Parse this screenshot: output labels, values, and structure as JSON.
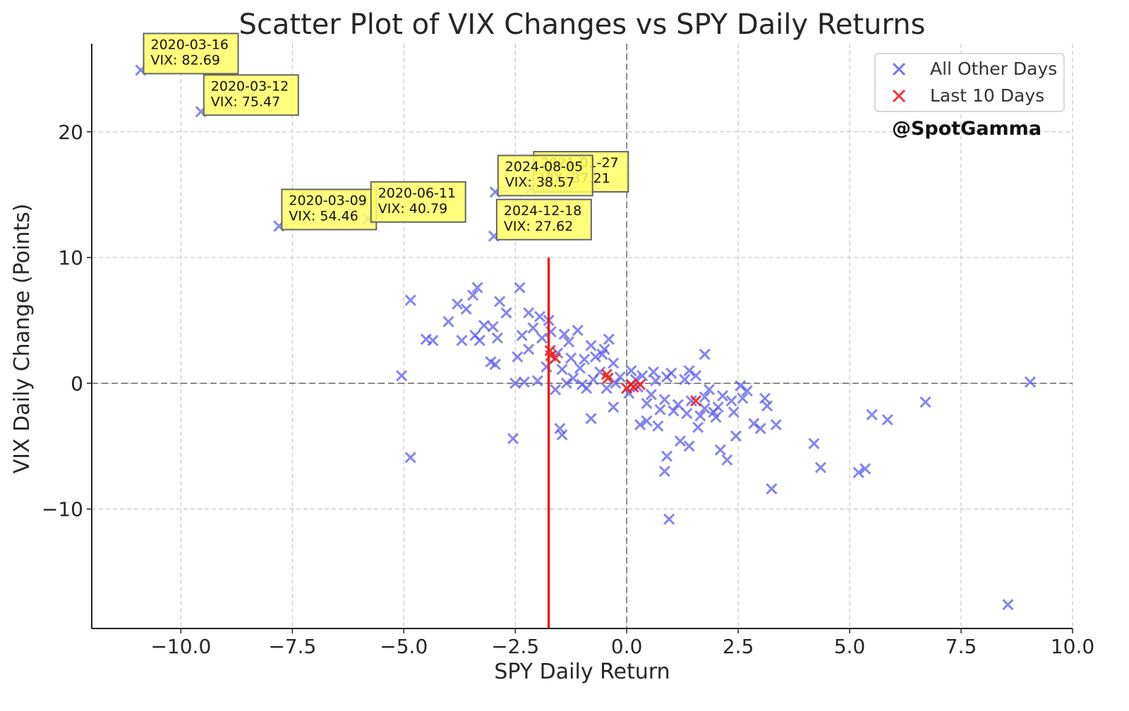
{
  "chart_data": {
    "type": "scatter",
    "title": "Scatter Plot of VIX Changes vs SPY Daily Returns",
    "xlabel": "SPY Daily Return",
    "ylabel": "VIX Daily Change (Points)",
    "xlim": [
      -12,
      10
    ],
    "ylim": [
      -19.5,
      27
    ],
    "xticks": [
      -10.0,
      -7.5,
      -5.0,
      -2.5,
      0.0,
      2.5,
      5.0,
      7.5,
      10.0
    ],
    "xtick_labels": [
      "−10.0",
      "−7.5",
      "−5.0",
      "−2.5",
      "0.0",
      "2.5",
      "5.0",
      "7.5",
      "10.0"
    ],
    "yticks": [
      -10,
      0,
      10,
      20
    ],
    "ytick_labels": [
      "−10",
      "0",
      "10",
      "20"
    ],
    "grid": true,
    "legend_position": "top-right",
    "watermark": "@SpotGamma",
    "vertical_line": {
      "x": -1.75,
      "y_from": -19.5,
      "y_to": 10,
      "color": "#ee1c1c"
    },
    "colors": {
      "other": "#5555ee",
      "last10": "#ee2222",
      "annotation_bg": "#ffff66",
      "annotation_border": "#666666"
    },
    "series": [
      {
        "name": "All Other Days",
        "marker": "x",
        "points": [
          [
            -10.9,
            24.9
          ],
          [
            -9.55,
            21.6
          ],
          [
            -7.8,
            12.5
          ],
          [
            -5.8,
            13.1
          ],
          [
            -2.95,
            15.2
          ],
          [
            -2.98,
            11.7
          ],
          [
            -2.15,
            15.5
          ],
          [
            -5.05,
            0.6
          ],
          [
            -4.85,
            6.6
          ],
          [
            -4.85,
            -5.9
          ],
          [
            -4.5,
            3.5
          ],
          [
            -4.35,
            3.4
          ],
          [
            -4.0,
            4.9
          ],
          [
            -3.8,
            6.3
          ],
          [
            -3.7,
            3.4
          ],
          [
            -3.6,
            5.9
          ],
          [
            -3.45,
            7.0
          ],
          [
            -3.35,
            7.6
          ],
          [
            -3.4,
            3.8
          ],
          [
            -3.3,
            3.4
          ],
          [
            -3.2,
            4.6
          ],
          [
            -3.05,
            1.7
          ],
          [
            -3.0,
            4.5
          ],
          [
            -2.95,
            1.5
          ],
          [
            -2.85,
            6.5
          ],
          [
            -2.7,
            5.6
          ],
          [
            -2.9,
            3.6
          ],
          [
            -2.5,
            0.0
          ],
          [
            -2.4,
            7.6
          ],
          [
            -2.3,
            0.1
          ],
          [
            -2.55,
            -4.4
          ],
          [
            -2.2,
            5.6
          ],
          [
            -2.0,
            0.2
          ],
          [
            -1.5,
            -3.6
          ],
          [
            -1.45,
            -4.1
          ],
          [
            -0.8,
            -2.8
          ],
          [
            0.9,
            -5.8
          ],
          [
            0.85,
            -7.0
          ],
          [
            0.95,
            -10.8
          ],
          [
            1.4,
            -5.0
          ],
          [
            1.6,
            -3.5
          ],
          [
            2.1,
            -5.3
          ],
          [
            2.25,
            -6.1
          ],
          [
            2.45,
            -4.2
          ],
          [
            3.0,
            -3.6
          ],
          [
            3.25,
            -8.4
          ],
          [
            3.35,
            -3.3
          ],
          [
            4.2,
            -4.8
          ],
          [
            4.35,
            -6.7
          ],
          [
            5.2,
            -7.1
          ],
          [
            5.35,
            -6.8
          ],
          [
            5.5,
            -2.5
          ],
          [
            5.85,
            -2.9
          ],
          [
            6.7,
            -1.5
          ],
          [
            8.55,
            -17.6
          ],
          [
            9.05,
            0.1
          ],
          [
            3.1,
            -1.2
          ],
          [
            3.15,
            -1.8
          ],
          [
            2.6,
            -1.2
          ],
          [
            2.0,
            -2.7
          ],
          [
            1.2,
            -4.6
          ],
          [
            -0.9,
            -0.4
          ],
          [
            -1.6,
            -0.5
          ],
          [
            -0.3,
            -1.9
          ],
          [
            0.3,
            -3.3
          ],
          [
            0.45,
            -3.0
          ],
          [
            0.7,
            -3.4
          ],
          [
            1.75,
            -2.0
          ],
          [
            2.4,
            -2.3
          ],
          [
            2.85,
            -3.2
          ],
          [
            -1.7,
            4.1
          ],
          [
            -1.9,
            3.6
          ],
          [
            -1.4,
            3.9
          ],
          [
            -1.1,
            4.2
          ],
          [
            -1.3,
            3.3
          ],
          [
            -0.8,
            3.0
          ],
          [
            -0.5,
            2.7
          ],
          [
            -1.55,
            2.4
          ],
          [
            -1.25,
            2.0
          ],
          [
            -0.95,
            1.9
          ],
          [
            -0.7,
            2.1
          ],
          [
            -0.3,
            1.6
          ],
          [
            0.1,
            1.0
          ],
          [
            0.35,
            0.6
          ],
          [
            0.65,
            0.2
          ],
          [
            0.9,
            0.5
          ],
          [
            1.3,
            0.3
          ],
          [
            1.55,
            0.6
          ],
          [
            1.85,
            -0.5
          ],
          [
            2.15,
            -1.0
          ],
          [
            -1.8,
            1.3
          ],
          [
            -1.45,
            1.1
          ],
          [
            -1.05,
            1.2
          ],
          [
            -0.6,
            0.9
          ],
          [
            -0.15,
            0.5
          ],
          [
            0.25,
            -0.3
          ],
          [
            0.55,
            -0.9
          ],
          [
            0.85,
            -1.3
          ],
          [
            1.15,
            -1.7
          ],
          [
            1.45,
            -1.4
          ],
          [
            1.75,
            -1.1
          ],
          [
            2.05,
            -1.9
          ],
          [
            2.35,
            -1.4
          ],
          [
            -2.35,
            3.8
          ],
          [
            -2.1,
            4.4
          ],
          [
            -1.95,
            5.3
          ],
          [
            -1.75,
            5.0
          ],
          [
            -2.45,
            2.1
          ],
          [
            -0.45,
            -0.4
          ],
          [
            0.05,
            -0.8
          ],
          [
            0.45,
            -1.6
          ],
          [
            0.75,
            -2.1
          ],
          [
            1.05,
            -2.2
          ],
          [
            1.35,
            -2.4
          ],
          [
            1.65,
            -2.6
          ],
          [
            1.95,
            -2.3
          ],
          [
            -1.2,
            0.4
          ],
          [
            -0.75,
            0.3
          ],
          [
            -0.25,
            0.0
          ],
          [
            0.2,
            0.3
          ],
          [
            0.6,
            0.9
          ],
          [
            1.0,
            0.8
          ],
          [
            1.4,
            1.0
          ],
          [
            1.75,
            2.3
          ],
          [
            -0.4,
            3.5
          ],
          [
            -0.55,
            2.3
          ],
          [
            -1.35,
            0.0
          ],
          [
            -2.2,
            2.7
          ],
          [
            2.55,
            -0.2
          ],
          [
            2.7,
            -0.6
          ],
          [
            -1.0,
            -0.1
          ]
        ]
      },
      {
        "name": "Last 10 Days",
        "marker": "x",
        "points": [
          [
            -1.72,
            2.6
          ],
          [
            -1.6,
            2.0
          ],
          [
            -0.45,
            0.7
          ],
          [
            -0.42,
            0.4
          ],
          [
            0.0,
            -0.4
          ],
          [
            0.1,
            -0.1
          ],
          [
            0.3,
            -0.1
          ],
          [
            0.15,
            -0.3
          ],
          [
            1.55,
            -1.4
          ],
          [
            -1.7,
            2.2
          ]
        ]
      }
    ],
    "annotations": [
      {
        "date": "2020-03-16",
        "vix": "VIX: 82.69",
        "x": -10.9,
        "y": 24.9
      },
      {
        "date": "2020-03-12",
        "vix": "VIX: 75.47",
        "x": -9.55,
        "y": 21.6
      },
      {
        "date": "2020-03-09",
        "vix": "VIX: 54.46",
        "x": -7.8,
        "y": 12.5
      },
      {
        "date": "2020-06-11",
        "vix": "VIX: 40.79",
        "x": -5.8,
        "y": 13.1
      },
      {
        "date": "2021-01-27",
        "vix": "VIX: 37.21",
        "x": -2.15,
        "y": 15.5
      },
      {
        "date": "2024-08-05",
        "vix": "VIX: 38.57",
        "x": -2.95,
        "y": 15.2
      },
      {
        "date": "2024-12-18",
        "vix": "VIX: 27.62",
        "x": -2.98,
        "y": 11.7
      }
    ]
  }
}
